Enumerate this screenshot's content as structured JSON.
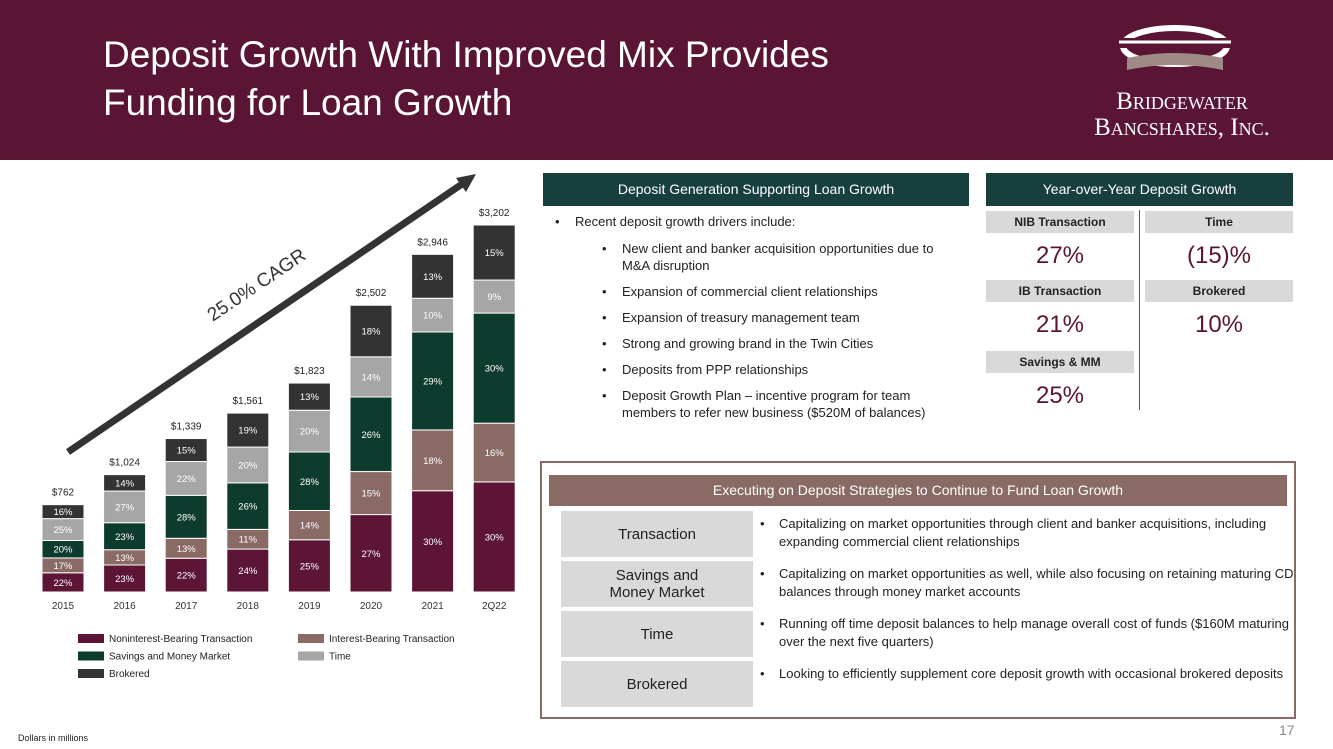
{
  "header": {
    "title_lines": [
      "Deposit Growth With Improved Mix Provides",
      "Funding for Loan Growth"
    ],
    "logo": [
      "Bridgewater",
      "Bancshares, Inc."
    ]
  },
  "chart_data": {
    "type": "stacked_bar",
    "annotation": "25.0% CAGR",
    "categories": [
      "2015",
      "2016",
      "2017",
      "2018",
      "2019",
      "2020",
      "2021",
      "2Q22"
    ],
    "totals": {
      "values": [
        762,
        1024,
        1339,
        1561,
        1823,
        2502,
        2946,
        3202
      ],
      "value_labels": [
        "$762",
        "$1,024",
        "$1,339",
        "$1,561",
        "$1,823",
        "$2,502",
        "$2,946",
        "$3,202"
      ]
    },
    "series": [
      {
        "name": "Noninterest-Bearing Transaction",
        "color": "#5c1535",
        "values": [
          22,
          23,
          22,
          24,
          25,
          27,
          30,
          30
        ],
        "value_labels": [
          "22%",
          "23%",
          "22%",
          "24%",
          "25%",
          "27%",
          "30%",
          "30%"
        ]
      },
      {
        "name": "Interest-Bearing Transaction",
        "color": "#8a6a65",
        "values": [
          17,
          13,
          13,
          11,
          14,
          15,
          18,
          16
        ],
        "value_labels": [
          "17%",
          "13%",
          "13%",
          "11%",
          "14%",
          "15%",
          "18%",
          "16%"
        ]
      },
      {
        "name": "Savings and Money Market",
        "color": "#0d3b2e",
        "values": [
          20,
          23,
          28,
          26,
          28,
          26,
          29,
          30
        ],
        "value_labels": [
          "20%",
          "23%",
          "28%",
          "26%",
          "28%",
          "26%",
          "29%",
          "30%"
        ]
      },
      {
        "name": "Time",
        "color": "#a6a6a6",
        "values": [
          25,
          27,
          22,
          20,
          20,
          14,
          10,
          9
        ],
        "value_labels": [
          "25%",
          "27%",
          "22%",
          "20%",
          "20%",
          "14%",
          "10%",
          "9%"
        ]
      },
      {
        "name": "Brokered",
        "color": "#333333",
        "values": [
          16,
          14,
          15,
          19,
          13,
          18,
          13,
          15
        ],
        "value_labels": [
          "16%",
          "14%",
          "15%",
          "19%",
          "13%",
          "18%",
          "13%",
          "15%"
        ]
      }
    ]
  },
  "drivers": {
    "heading": "Deposit Generation Supporting Loan Growth",
    "intro": "Recent deposit growth drivers include:",
    "items": [
      "New client and banker acquisition opportunities due to M&A disruption",
      "Expansion of commercial client relationships",
      "Expansion of treasury management team",
      "Strong and growing brand in the Twin Cities",
      "Deposits from PPP relationships",
      "Deposit Growth Plan – incentive program for team members to refer new business    ($520M of balances)"
    ]
  },
  "yoy": {
    "heading": "Year-over-Year Deposit Growth",
    "cells": [
      {
        "label": "NIB Transaction",
        "value": "27%"
      },
      {
        "label": "Time",
        "value": "(15)%"
      },
      {
        "label": "IB Transaction",
        "value": "21%"
      },
      {
        "label": "Brokered",
        "value": "10%"
      },
      {
        "label": "Savings & MM",
        "value": "25%"
      }
    ]
  },
  "strategies": {
    "heading": "Executing on Deposit Strategies to Continue to Fund Loan Growth",
    "rows": [
      {
        "label": "Transaction",
        "text": "Capitalizing on market opportunities through client and banker acquisitions, including expanding commercial client relationships"
      },
      {
        "label": "Savings and Money Market",
        "text": "Capitalizing on market opportunities as well, while also focusing on retaining maturing CD balances through money market accounts"
      },
      {
        "label": "Time",
        "text": "Running off time deposit balances to help manage overall cost of funds ($160M maturing over the next five quarters)"
      },
      {
        "label": "Brokered",
        "text": "Looking to efficiently supplement core deposit growth with occasional brokered deposits"
      }
    ]
  },
  "footnote": "Dollars in millions",
  "page_number": "17"
}
